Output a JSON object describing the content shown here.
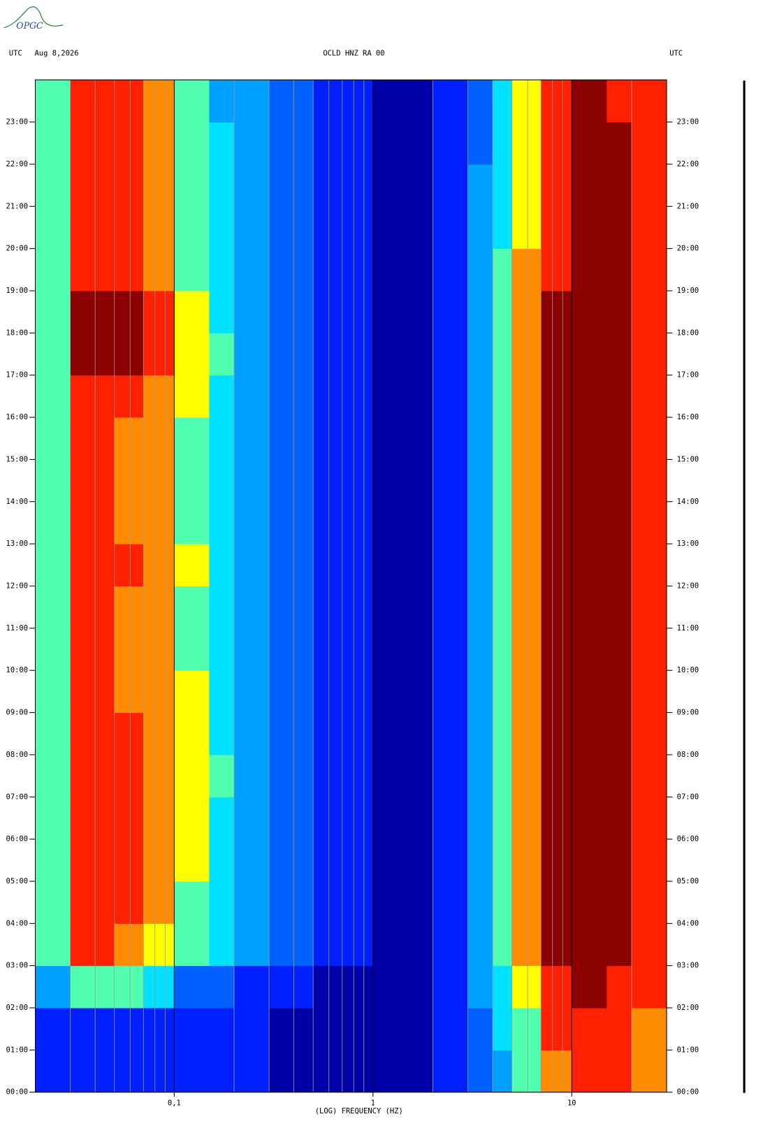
{
  "logo": "OPGC",
  "chart_data": {
    "type": "spectrogram",
    "header_left": "UTC",
    "date": "Aug 8,2026",
    "title": "OCLD HNZ RA 00",
    "header_right": "UTC",
    "xlabel": "(LOG) FREQUENCY (HZ)",
    "xscale": "log",
    "xlim": [
      0.02,
      30
    ],
    "xticks": [
      {
        "value": 0.1,
        "label": "0,1"
      },
      1,
      10
    ],
    "x_minor_grid": [
      0.03,
      0.04,
      0.05,
      0.06,
      0.07,
      0.08,
      0.09,
      0.2,
      0.3,
      0.4,
      0.5,
      0.6,
      0.7,
      0.8,
      0.9,
      2,
      3,
      4,
      5,
      6,
      7,
      8,
      9,
      20
    ],
    "ylim": [
      0,
      24
    ],
    "yticks": [
      {
        "value": 0,
        "label": "00:00"
      },
      {
        "value": 1,
        "label": "01:00"
      },
      {
        "value": 2,
        "label": "02:00"
      },
      {
        "value": 3,
        "label": "03:00"
      },
      {
        "value": 4,
        "label": "04:00"
      },
      {
        "value": 5,
        "label": "05:00"
      },
      {
        "value": 6,
        "label": "06:00"
      },
      {
        "value": 7,
        "label": "07:00"
      },
      {
        "value": 8,
        "label": "08:00"
      },
      {
        "value": 9,
        "label": "09:00"
      },
      {
        "value": 10,
        "label": "10:00"
      },
      {
        "value": 11,
        "label": "11:00"
      },
      {
        "value": 12,
        "label": "12:00"
      },
      {
        "value": 13,
        "label": "13:00"
      },
      {
        "value": 14,
        "label": "14:00"
      },
      {
        "value": 15,
        "label": "15:00"
      },
      {
        "value": 16,
        "label": "16:00"
      },
      {
        "value": 17,
        "label": "17:00"
      },
      {
        "value": 18,
        "label": "18:00"
      },
      {
        "value": 19,
        "label": "19:00"
      },
      {
        "value": 20,
        "label": "20:00"
      },
      {
        "value": 21,
        "label": "21:00"
      },
      {
        "value": 22,
        "label": "22:00"
      },
      {
        "value": 23,
        "label": "23:00"
      }
    ],
    "freq_bins": [
      0.02,
      0.03,
      0.05,
      0.07,
      0.1,
      0.15,
      0.2,
      0.3,
      0.5,
      0.7,
      1,
      1.5,
      2,
      3,
      4,
      5,
      7,
      10,
      15,
      20,
      30
    ],
    "colorscale": [
      "#0000a8",
      "#0020ff",
      "#0060ff",
      "#00a0ff",
      "#00e0ff",
      "#50ffb0",
      "#ffff00",
      "#ff8c00",
      "#ff2000",
      "#8b0000"
    ],
    "z": [
      [
        1,
        1,
        1,
        1,
        1,
        1,
        1,
        0,
        0,
        0,
        0,
        0,
        1,
        2,
        3,
        5,
        7,
        8,
        8,
        7
      ],
      [
        1,
        1,
        1,
        1,
        1,
        1,
        1,
        0,
        0,
        0,
        0,
        0,
        1,
        2,
        4,
        5,
        8,
        8,
        8,
        7
      ],
      [
        3,
        5,
        5,
        4,
        2,
        2,
        1,
        1,
        0,
        0,
        0,
        0,
        1,
        3,
        4,
        6,
        8,
        9,
        8,
        8
      ],
      [
        5,
        8,
        7,
        6,
        5,
        4,
        3,
        2,
        1,
        1,
        0,
        0,
        1,
        3,
        5,
        7,
        9,
        9,
        9,
        8
      ],
      [
        5,
        8,
        8,
        7,
        5,
        4,
        3,
        2,
        1,
        1,
        0,
        0,
        1,
        3,
        5,
        7,
        9,
        9,
        9,
        8
      ],
      [
        5,
        8,
        8,
        7,
        6,
        4,
        3,
        2,
        1,
        1,
        0,
        0,
        1,
        3,
        5,
        7,
        9,
        9,
        9,
        8
      ],
      [
        5,
        8,
        8,
        7,
        6,
        4,
        3,
        2,
        1,
        1,
        0,
        0,
        1,
        3,
        5,
        7,
        9,
        9,
        9,
        8
      ],
      [
        5,
        8,
        8,
        7,
        6,
        5,
        3,
        2,
        1,
        1,
        0,
        0,
        1,
        3,
        5,
        7,
        9,
        9,
        9,
        8
      ],
      [
        5,
        8,
        8,
        7,
        6,
        4,
        3,
        2,
        1,
        1,
        0,
        0,
        1,
        3,
        5,
        7,
        9,
        9,
        9,
        8
      ],
      [
        5,
        8,
        7,
        7,
        6,
        4,
        3,
        2,
        1,
        1,
        0,
        0,
        1,
        3,
        5,
        7,
        9,
        9,
        9,
        8
      ],
      [
        5,
        8,
        7,
        7,
        5,
        4,
        3,
        2,
        1,
        1,
        0,
        0,
        1,
        3,
        5,
        7,
        9,
        9,
        9,
        8
      ],
      [
        5,
        8,
        7,
        7,
        5,
        4,
        3,
        2,
        1,
        1,
        0,
        0,
        1,
        3,
        5,
        7,
        9,
        9,
        9,
        8
      ],
      [
        5,
        8,
        8,
        7,
        6,
        4,
        3,
        2,
        1,
        1,
        0,
        0,
        1,
        3,
        5,
        7,
        9,
        9,
        9,
        8
      ],
      [
        5,
        8,
        7,
        7,
        5,
        4,
        3,
        2,
        1,
        1,
        0,
        0,
        1,
        3,
        5,
        7,
        9,
        9,
        9,
        8
      ],
      [
        5,
        8,
        7,
        7,
        5,
        4,
        3,
        2,
        1,
        1,
        0,
        0,
        1,
        3,
        5,
        7,
        9,
        9,
        9,
        8
      ],
      [
        5,
        8,
        7,
        7,
        5,
        4,
        3,
        2,
        1,
        1,
        0,
        0,
        1,
        3,
        5,
        7,
        9,
        9,
        9,
        8
      ],
      [
        5,
        8,
        8,
        7,
        6,
        4,
        3,
        2,
        1,
        1,
        0,
        0,
        1,
        3,
        5,
        7,
        9,
        9,
        9,
        8
      ],
      [
        5,
        9,
        9,
        8,
        6,
        5,
        3,
        2,
        1,
        1,
        0,
        0,
        1,
        3,
        5,
        7,
        9,
        9,
        9,
        8
      ],
      [
        5,
        9,
        9,
        8,
        6,
        4,
        3,
        2,
        1,
        1,
        0,
        0,
        1,
        3,
        5,
        7,
        9,
        9,
        9,
        8
      ],
      [
        5,
        8,
        8,
        7,
        5,
        4,
        3,
        2,
        1,
        1,
        0,
        0,
        1,
        3,
        5,
        7,
        8,
        9,
        9,
        8
      ],
      [
        5,
        8,
        8,
        7,
        5,
        4,
        3,
        2,
        1,
        1,
        0,
        0,
        1,
        3,
        4,
        6,
        8,
        9,
        9,
        8
      ],
      [
        5,
        8,
        8,
        7,
        5,
        4,
        3,
        2,
        1,
        1,
        0,
        0,
        1,
        3,
        4,
        6,
        8,
        9,
        9,
        8
      ],
      [
        5,
        8,
        8,
        7,
        5,
        4,
        3,
        2,
        1,
        1,
        0,
        0,
        1,
        2,
        4,
        6,
        8,
        9,
        9,
        8
      ],
      [
        5,
        8,
        8,
        7,
        5,
        3,
        3,
        2,
        1,
        1,
        0,
        0,
        1,
        2,
        4,
        6,
        8,
        9,
        8,
        8
      ]
    ]
  }
}
